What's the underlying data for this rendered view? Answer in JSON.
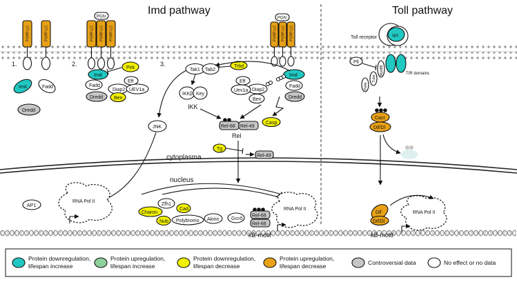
{
  "titles": {
    "imd": "Imd pathway",
    "toll": "Toll pathway"
  },
  "compartments": {
    "cytoplasm": "cytoplasma",
    "nucleus": "nucleus"
  },
  "steps": [
    "1.",
    "2.",
    "3."
  ],
  "receptors": {
    "pgrp_lc": "PGRP-LC",
    "pgn": "PGN",
    "toll_receptor": "Toll receptor",
    "spz": "spz",
    "tir": "TIR domains"
  },
  "nodes": {
    "imd": "Imd",
    "fadd": "Fadd",
    "dredd": "Dredd",
    "pirk": "Pirk",
    "diap2": "Diap2",
    "eff": "Eff",
    "uev1a": "UEV1a",
    "uev1a_b": "Uev1a",
    "ben": "Ben",
    "tak1": "Tak1",
    "tab2": "Tab2",
    "trbd": "Trbd",
    "ikkb": "IKKβ",
    "key": "Key",
    "ikk": "IKK",
    "jnk": "JNK",
    "casp": "Casp",
    "rel68": "Rel-68",
    "rel49": "Rel-49",
    "rel": "Rel",
    "tg": "Tg",
    "ap1": "AP1",
    "rnapol": "RNA Pol II",
    "charon": "Charon",
    "zfh1": "Zfh1",
    "cad": "Cad",
    "nub": "Nub",
    "polybromo": "Polybromo",
    "akirin": "Akirin",
    "gcn5": "Gcn5",
    "kbmotif": "kB-motif",
    "pll": "Pll",
    "myd88": "Myd88",
    "tube": "Tube",
    "pelle": "Pelle",
    "cact": "Cact",
    "dif_dl": "Dif/Dl",
    "dif": "Dif",
    "dl": "Dl"
  },
  "legend": [
    {
      "label1": "Protein downregulation,",
      "label2": "lifespan increase",
      "color": "#21c8c2"
    },
    {
      "label1": "Protein upregulation,",
      "label2": "lifespan increase",
      "color": "#8fd09c"
    },
    {
      "label1": "Protein downregulation,",
      "label2": "lifespan decrease",
      "color": "#f2f100"
    },
    {
      "label1": "Protein upregulation,",
      "label2": "lifespan decrease",
      "color": "#e8a117"
    },
    {
      "label1": "Controversial data",
      "label2": "",
      "color": "#c6c6c6"
    },
    {
      "label1": "No effect or no data",
      "label2": "",
      "color": "#ffffff"
    }
  ],
  "colors": {
    "cyan": "#21c8c2",
    "yellow": "#f2f100",
    "orange": "#e8a117",
    "grey": "#c6c6c6",
    "membrane": "#bdbdbd"
  }
}
